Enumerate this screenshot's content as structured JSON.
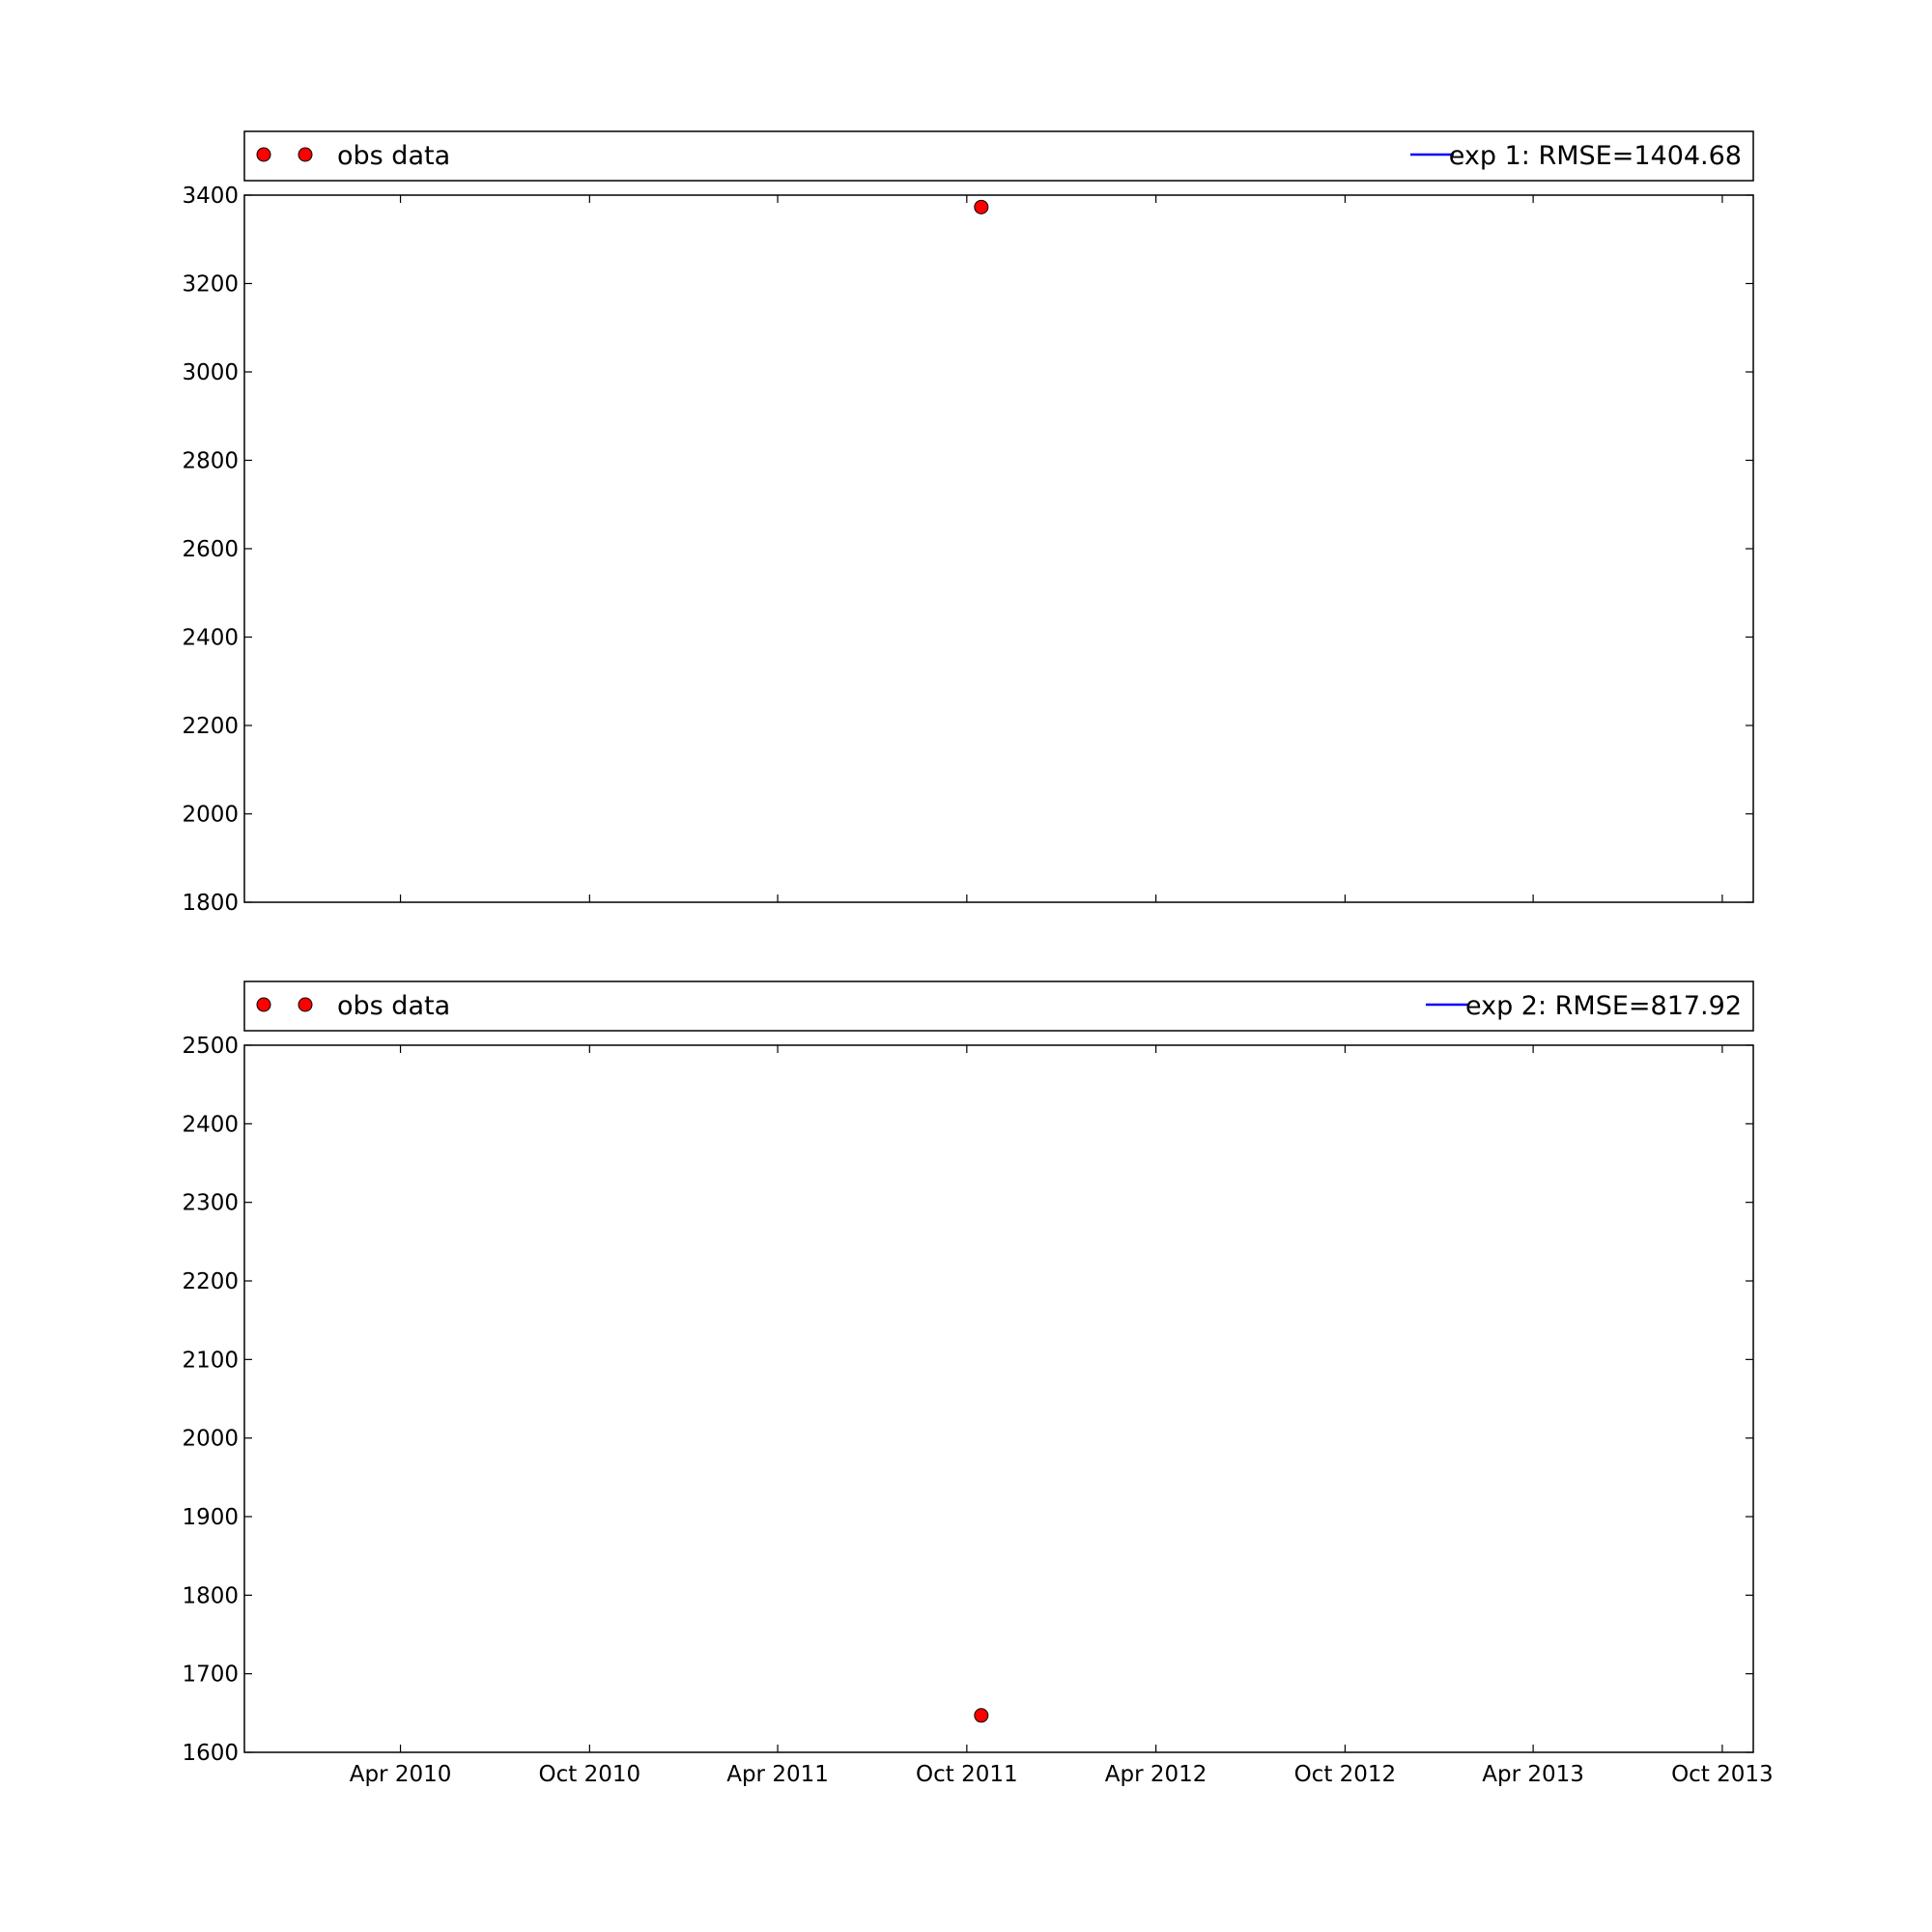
{
  "colors": {
    "obs_marker": "#ff0000",
    "obs_marker_edge": "#000000",
    "model_line": "#0000ff",
    "axes": "#000000",
    "background": "#ffffff"
  },
  "chart_data": [
    {
      "type": "scatter",
      "title": "",
      "xlabel": "",
      "ylabel": "",
      "x_axis": "date",
      "xlim": [
        "2009-11-01",
        "2013-10-31"
      ],
      "ylim": [
        1800,
        3400
      ],
      "yticks": [
        "1800",
        "2000",
        "2200",
        "2400",
        "2600",
        "2800",
        "3000",
        "3200",
        "3400"
      ],
      "xticks": [
        "2010-04-01",
        "2010-10-01",
        "2011-04-01",
        "2011-10-01",
        "2012-04-01",
        "2012-10-01",
        "2013-04-01",
        "2013-10-01"
      ],
      "xtick_labels_visible": false,
      "grid": false,
      "legend": {
        "placement": "top, above plot",
        "entries": [
          {
            "label": "obs data",
            "marker": "circle",
            "color": "#ff0000"
          },
          {
            "label": "exp 1: RMSE=1404.68",
            "marker": "line",
            "color": "#0000ff"
          }
        ]
      },
      "series": [
        {
          "name": "obs data",
          "kind": "points",
          "x": [
            "2011-10-15"
          ],
          "y": [
            3373
          ]
        },
        {
          "name": "exp 1: RMSE=1404.68",
          "kind": "line",
          "x": [],
          "y": []
        }
      ]
    },
    {
      "type": "scatter",
      "title": "",
      "xlabel": "",
      "ylabel": "",
      "x_axis": "date",
      "xlim": [
        "2009-11-01",
        "2013-10-31"
      ],
      "ylim": [
        1600,
        2500
      ],
      "yticks": [
        "1600",
        "1700",
        "1800",
        "1900",
        "2000",
        "2100",
        "2200",
        "2300",
        "2400",
        "2500"
      ],
      "xticks": [
        "2010-04-01",
        "2010-10-01",
        "2011-04-01",
        "2011-10-01",
        "2012-04-01",
        "2012-10-01",
        "2013-04-01",
        "2013-10-01"
      ],
      "xtick_labels": [
        "Apr 2010",
        "Oct 2010",
        "Apr 2011",
        "Oct 2011",
        "Apr 2012",
        "Oct 2012",
        "Apr 2013",
        "Oct 2013"
      ],
      "xtick_labels_visible": true,
      "grid": false,
      "legend": {
        "placement": "top, above plot",
        "entries": [
          {
            "label": "obs data",
            "marker": "circle",
            "color": "#ff0000"
          },
          {
            "label": "exp 2: RMSE=817.92",
            "marker": "line",
            "color": "#0000ff"
          }
        ]
      },
      "series": [
        {
          "name": "obs data",
          "kind": "points",
          "x": [
            "2011-10-15"
          ],
          "y": [
            1647
          ]
        },
        {
          "name": "exp 2: RMSE=817.92",
          "kind": "line",
          "x": [],
          "y": []
        }
      ]
    }
  ]
}
